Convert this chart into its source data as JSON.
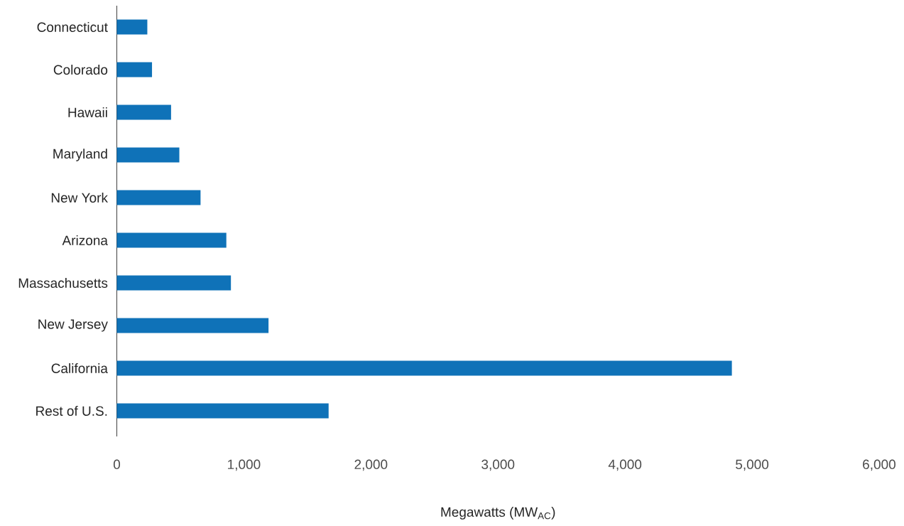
{
  "chart_data": {
    "type": "bar",
    "orientation": "horizontal",
    "xlabel": "Megawatts (MW$_{AC}$)",
    "categories": [
      "Connecticut",
      "Colorado",
      "Hawaii",
      "Maryland",
      "New York",
      "Arizona",
      "Massachusetts",
      "New Jersey",
      "California",
      "Rest of U.S."
    ],
    "values": [
      240,
      277,
      427,
      492,
      659,
      862,
      898,
      1194,
      4841,
      1667
    ],
    "color": "#0f72b8",
    "xlim": [
      0,
      6000
    ],
    "xticks": [
      {
        "value": 0,
        "label": "0"
      },
      {
        "value": 1000,
        "label": "1,000"
      },
      {
        "value": 2000,
        "label": "2,000"
      },
      {
        "value": 3000,
        "label": "3,000"
      },
      {
        "value": 4000,
        "label": "4,000"
      },
      {
        "value": 5000,
        "label": "5,000"
      },
      {
        "value": 6000,
        "label": "6,000"
      }
    ]
  }
}
